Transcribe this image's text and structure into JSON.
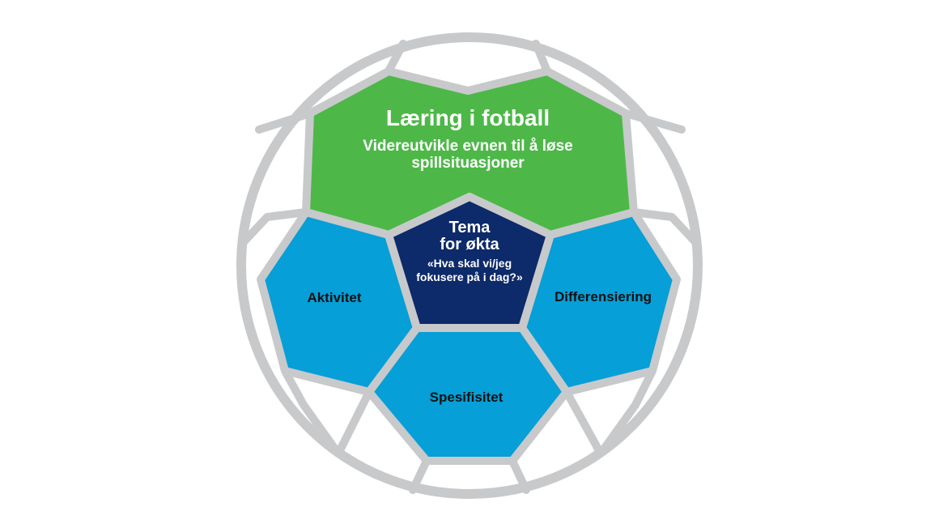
{
  "panels": {
    "top": {
      "title": "Læring i fotball",
      "subtitle_line1": "Videreutvikle evnen til å løse",
      "subtitle_line2": "spillsituasjoner"
    },
    "center": {
      "title_line1": "Tema",
      "title_line2": "for økta",
      "question_line1": "«Hva skal vi/jeg",
      "question_line2": "fokusere på i dag?»"
    },
    "left": {
      "label": "Aktivitet"
    },
    "right": {
      "label": "Differensiering"
    },
    "bottom": {
      "label": "Spesifisitet"
    }
  },
  "colors": {
    "green": "#4db848",
    "blue": "#069fd8",
    "navy": "#0d2a6a",
    "seam": "#c8c9cb",
    "white": "#ffffff"
  }
}
